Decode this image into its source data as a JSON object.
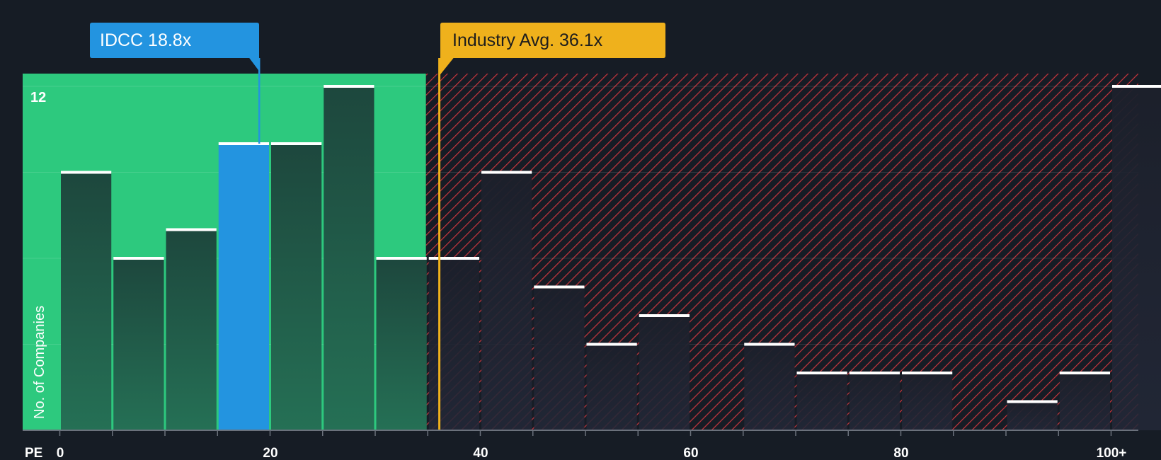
{
  "colors": {
    "background": "#161c25",
    "fair_zone": "#2dc97e",
    "fair_bar": "#1e4a40",
    "highlight_bar": "#2394e0",
    "over_bar": "#1f2330",
    "hatch_line": "#c8353c",
    "industry": "#efb11c",
    "bar_top": "#ffffff"
  },
  "chart_data": {
    "type": "bar",
    "title": "",
    "xlabel": "PE",
    "ylabel": "No. of Companies",
    "bin_width": 5,
    "bins_start": [
      0,
      5,
      10,
      15,
      20,
      25,
      30,
      35,
      40,
      45,
      50,
      55,
      60,
      65,
      70,
      75,
      80,
      85,
      90,
      95,
      100
    ],
    "values": [
      9,
      6,
      7,
      10,
      10,
      12,
      6,
      6,
      9,
      5,
      3,
      4,
      0,
      3,
      2,
      2,
      2,
      0,
      1,
      2,
      12
    ],
    "highlight_bin_index": 3,
    "fair_value_boundary": 35,
    "x_ticks": [
      {
        "value": 0,
        "label": "0"
      },
      {
        "value": 20,
        "label": "20"
      },
      {
        "value": 40,
        "label": "40"
      },
      {
        "value": 60,
        "label": "60"
      },
      {
        "value": 80,
        "label": "80"
      },
      {
        "value": 100,
        "label": "100+"
      }
    ],
    "ylim": [
      0,
      12
    ],
    "y_max_label": "12",
    "company": {
      "ticker": "IDCC",
      "value": 18.8,
      "label": "IDCC 18.8x"
    },
    "industry_avg": {
      "value": 36.1,
      "label": "Industry Avg. 36.1x"
    }
  }
}
